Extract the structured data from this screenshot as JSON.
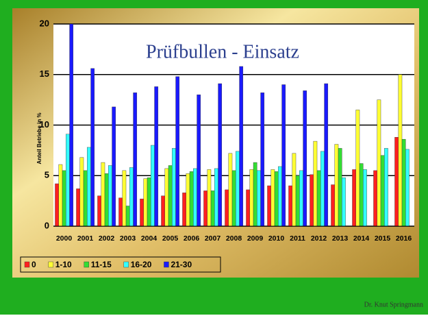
{
  "chart_data": {
    "type": "bar",
    "title": "Prüfbullen - Einsatz",
    "y_label": "Anteil Betriebe in %",
    "categories": [
      "2000",
      "2001",
      "2002",
      "2003",
      "2004",
      "2005",
      "2006",
      "2007",
      "2008",
      "2009",
      "2010",
      "2011",
      "2012",
      "2013",
      "2014",
      "2015",
      "2016"
    ],
    "series": [
      {
        "name": "0",
        "color": "#ff2020",
        "values": [
          4.2,
          3.7,
          3.0,
          2.8,
          2.7,
          3.0,
          3.3,
          3.5,
          3.6,
          3.6,
          4.0,
          4.0,
          5.1,
          4.1,
          5.6,
          5.5,
          8.8
        ]
      },
      {
        "name": "1-10",
        "color": "#ffff33",
        "values": [
          6.1,
          6.8,
          6.3,
          5.5,
          4.7,
          5.7,
          5.2,
          5.6,
          7.2,
          5.6,
          5.6,
          7.2,
          8.4,
          8.1,
          11.5,
          12.5,
          15.0
        ]
      },
      {
        "name": "11-15",
        "color": "#33dd33",
        "values": [
          5.5,
          5.5,
          5.2,
          2.0,
          4.8,
          6.0,
          5.4,
          3.5,
          5.5,
          6.3,
          5.4,
          5.0,
          5.5,
          7.7,
          6.2,
          7.0,
          8.6
        ]
      },
      {
        "name": "16-20",
        "color": "#33ffff",
        "values": [
          9.1,
          7.8,
          6.0,
          5.8,
          8.0,
          7.7,
          5.7,
          5.7,
          7.4,
          5.5,
          5.9,
          5.5,
          7.4,
          4.8,
          5.6,
          7.7,
          7.6
        ]
      },
      {
        "name": "21-30",
        "color": "#1a1aff",
        "values": [
          20,
          15.6,
          11.8,
          13.2,
          13.8,
          14.8,
          13.0,
          14.1,
          15.8,
          13.2,
          14.0,
          13.4,
          14.1,
          null,
          null,
          null,
          null
        ]
      }
    ],
    "ylim": [
      0,
      20
    ],
    "yticks": [
      0,
      5,
      10,
      15,
      20
    ],
    "grid": true
  },
  "footer": "Dr. Knut Springmann"
}
